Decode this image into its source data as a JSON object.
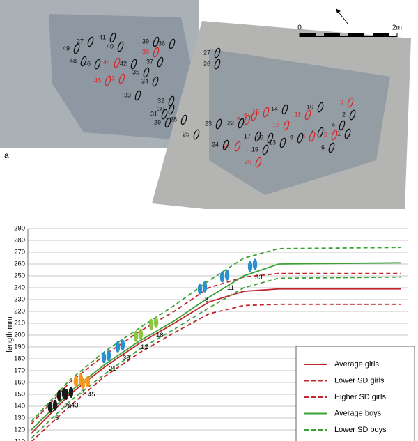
{
  "figure_label": "a",
  "scale_bar": {
    "start": "0",
    "end": "2m"
  },
  "footprints": [
    "49",
    "27",
    "48",
    "46",
    "41",
    "40",
    "39",
    "36",
    "38",
    "37",
    "44",
    "42",
    "45",
    "43",
    "35",
    "34",
    "33",
    "32",
    "30",
    "31",
    "29",
    "28",
    "27",
    "26",
    "25",
    "23",
    "22",
    "24",
    "17",
    "16",
    "13",
    "14",
    "15",
    "6",
    "5",
    "12",
    "11",
    "10",
    "3",
    "2",
    "7",
    "8",
    "9",
    "4",
    "1",
    "6",
    "5",
    "19",
    "21",
    "20"
  ],
  "chart_data": {
    "type": "line",
    "y_label": "length mm",
    "xlim": [
      0,
      545
    ],
    "ylim": [
      110,
      290
    ],
    "yticks": [
      110,
      120,
      130,
      140,
      150,
      160,
      170,
      180,
      190,
      200,
      210,
      220,
      230,
      240,
      250,
      260,
      270,
      280,
      290
    ],
    "grid": true,
    "x": [
      5,
      60,
      110,
      160,
      210,
      260,
      310,
      360,
      535
    ],
    "series": [
      {
        "name": "Average girls",
        "color": "#c0262d",
        "dash": false,
        "values": [
          117,
          150,
          173,
          193,
          210,
          228,
          237,
          239,
          239
        ]
      },
      {
        "name": "Lower SD girls",
        "color": "#c0262d",
        "dash": true,
        "values": [
          110,
          140,
          165,
          185,
          202,
          218,
          225,
          226,
          226
        ]
      },
      {
        "name": "Higher SD girls",
        "color": "#c0262d",
        "dash": true,
        "values": [
          125,
          160,
          183,
          203,
          220,
          240,
          249,
          252,
          252
        ]
      },
      {
        "name": "Average boys",
        "color": "#3aa335",
        "dash": false,
        "values": [
          120,
          152,
          175,
          195,
          212,
          232,
          250,
          260,
          261
        ]
      },
      {
        "name": "Lower SD boys",
        "color": "#3aa335",
        "dash": true,
        "values": [
          113,
          144,
          167,
          188,
          205,
          223,
          240,
          248,
          249
        ]
      },
      {
        "color": "#3aa335",
        "dash": true,
        "values": [
          127,
          162,
          186,
          206,
          225,
          246,
          265,
          273,
          274
        ]
      }
    ],
    "markers": {
      "x": [
        35,
        48,
        58,
        72,
        82,
        112,
        132,
        158,
        180,
        250,
        282,
        322
      ],
      "values": [
        139,
        149,
        150,
        161,
        159,
        181,
        190,
        199,
        209,
        239,
        249,
        258
      ],
      "labels": [
        "5",
        "20",
        "43",
        "3",
        "45",
        "21",
        "38",
        "12",
        "18",
        "8",
        "11",
        "33"
      ],
      "colors": [
        "#1a1a1a",
        "#1a1a1a",
        "#1a1a1a",
        "#f39a1e",
        "#f39a1e",
        "#2b8fd0",
        "#2b8fd0",
        "#8cc63f",
        "#8cc63f",
        "#2b8fd0",
        "#2b8fd0",
        "#2b8fd0"
      ]
    }
  }
}
